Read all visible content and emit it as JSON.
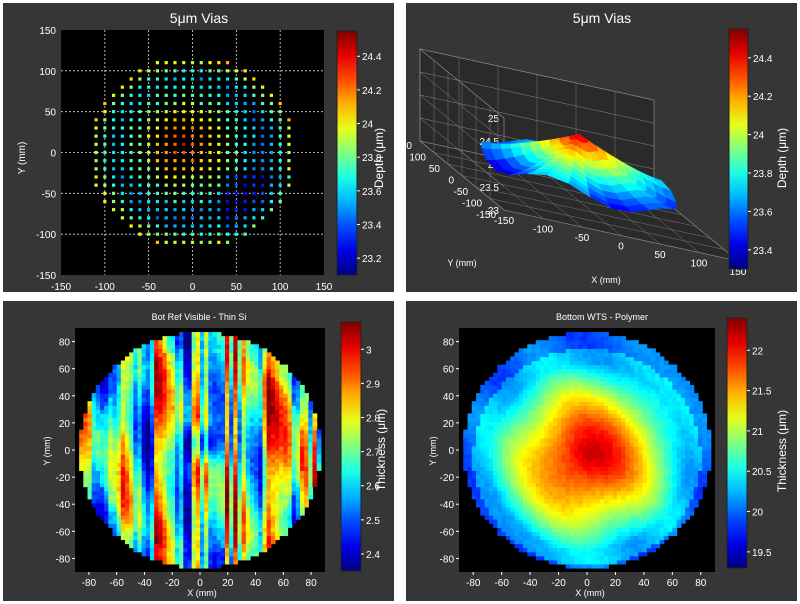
{
  "colormap": "jet",
  "chart_data": [
    {
      "type": "scatter",
      "title": "5μm Vias",
      "xlabel": "",
      "ylabel": "Y (mm)",
      "xlim": [
        -150,
        150
      ],
      "ylim": [
        -150,
        150
      ],
      "xticks": [
        "-150",
        "-100",
        "-50",
        "0",
        "50",
        "100",
        "150"
      ],
      "yticks": [
        "150",
        "100",
        "50",
        "0",
        "-50",
        "-100",
        "-150"
      ],
      "grid": true,
      "grid_style": "dotted white",
      "background": "#000000",
      "colorbar": {
        "label": "Depth (μm)",
        "range": [
          23.1,
          24.55
        ],
        "ticks": [
          "24.4",
          "24.2",
          "24",
          "23.8",
          "23.6",
          "23.4",
          "23.2"
        ]
      },
      "pattern": "via sites on a 10 mm pitch grid within a wafer of radius ~120 mm; deepest (~24.4 μm) near x≈-20..20, y≈-10..30, shallowest (~23.3 μm) toward left/right rim",
      "grid_pitch_mm": 10,
      "wafer_radius_mm": 120,
      "sample_points": [
        {
          "x": -20,
          "y": 10,
          "depth": 24.4
        },
        {
          "x": 0,
          "y": 20,
          "depth": 24.3
        },
        {
          "x": 20,
          "y": 0,
          "depth": 24.1
        },
        {
          "x": -60,
          "y": 0,
          "depth": 23.5
        },
        {
          "x": 100,
          "y": 20,
          "depth": 23.6
        },
        {
          "x": 0,
          "y": -100,
          "depth": 23.7
        },
        {
          "x": -100,
          "y": 0,
          "depth": 23.9
        },
        {
          "x": 40,
          "y": 100,
          "depth": 23.8
        }
      ]
    },
    {
      "type": "surface",
      "title": "5μm Vias",
      "xlabel": "X (mm)",
      "ylabel": "Y (mm)",
      "zlim": [
        23,
        25
      ],
      "xticks": [
        "-150",
        "-100",
        "-50",
        "0",
        "50",
        "100",
        "150"
      ],
      "yticks": [
        "150",
        "100",
        "50",
        "0",
        "-50",
        "-100",
        "-150"
      ],
      "zticks": [
        "25",
        "24.5",
        "24",
        "23.5",
        "23"
      ],
      "colorbar": {
        "label": "Depth (μm)",
        "range": [
          23.3,
          24.55
        ],
        "ticks": [
          "24.4",
          "24.2",
          "24",
          "23.8",
          "23.6",
          "23.4"
        ]
      },
      "pattern": "dome surface, peak ~24.4 μm at center, falling to ~23.5 μm at the wafer edge"
    },
    {
      "type": "heatmap",
      "title": "Bot Ref Visible - Thin Si",
      "xlabel": "X (mm)",
      "ylabel": "Y (mm)",
      "xlim": [
        -90,
        90
      ],
      "ylim": [
        -90,
        90
      ],
      "xticks": [
        "-80",
        "-60",
        "-40",
        "-20",
        "0",
        "20",
        "40",
        "60",
        "80"
      ],
      "yticks": [
        "80",
        "60",
        "40",
        "20",
        "0",
        "-20",
        "-40",
        "-60",
        "-80"
      ],
      "colorbar": {
        "label": "Thickness (μm)",
        "range": [
          2.35,
          3.08
        ],
        "ticks": [
          "3",
          "2.9",
          "2.8",
          "2.7",
          "2.6",
          "2.5",
          "2.4"
        ]
      },
      "pattern": "circular wafer of radius ~88 mm; vertical streaky thickness variation 2.6–3.0 μm; thin spot ~2.45 μm near (0, 5)"
    },
    {
      "type": "heatmap",
      "title": "Bottom WTS - Polymer",
      "xlabel": "X (mm)",
      "ylabel": "Y (mm)",
      "xlim": [
        -90,
        90
      ],
      "ylim": [
        -90,
        90
      ],
      "xticks": [
        "-80",
        "-60",
        "-40",
        "-20",
        "0",
        "20",
        "40",
        "60",
        "80"
      ],
      "yticks": [
        "80",
        "60",
        "40",
        "20",
        "0",
        "-20",
        "-40",
        "-60",
        "-80"
      ],
      "colorbar": {
        "label": "Thickness (μm)",
        "range": [
          19.3,
          22.4
        ],
        "ticks": [
          "22",
          "21.5",
          "21",
          "20.5",
          "20",
          "19.5"
        ]
      },
      "pattern": "circular wafer of radius ~88 mm; thickest (~22.3 μm) in center near (0, -5), thinning radially to ~20.2 μm at rim"
    }
  ]
}
